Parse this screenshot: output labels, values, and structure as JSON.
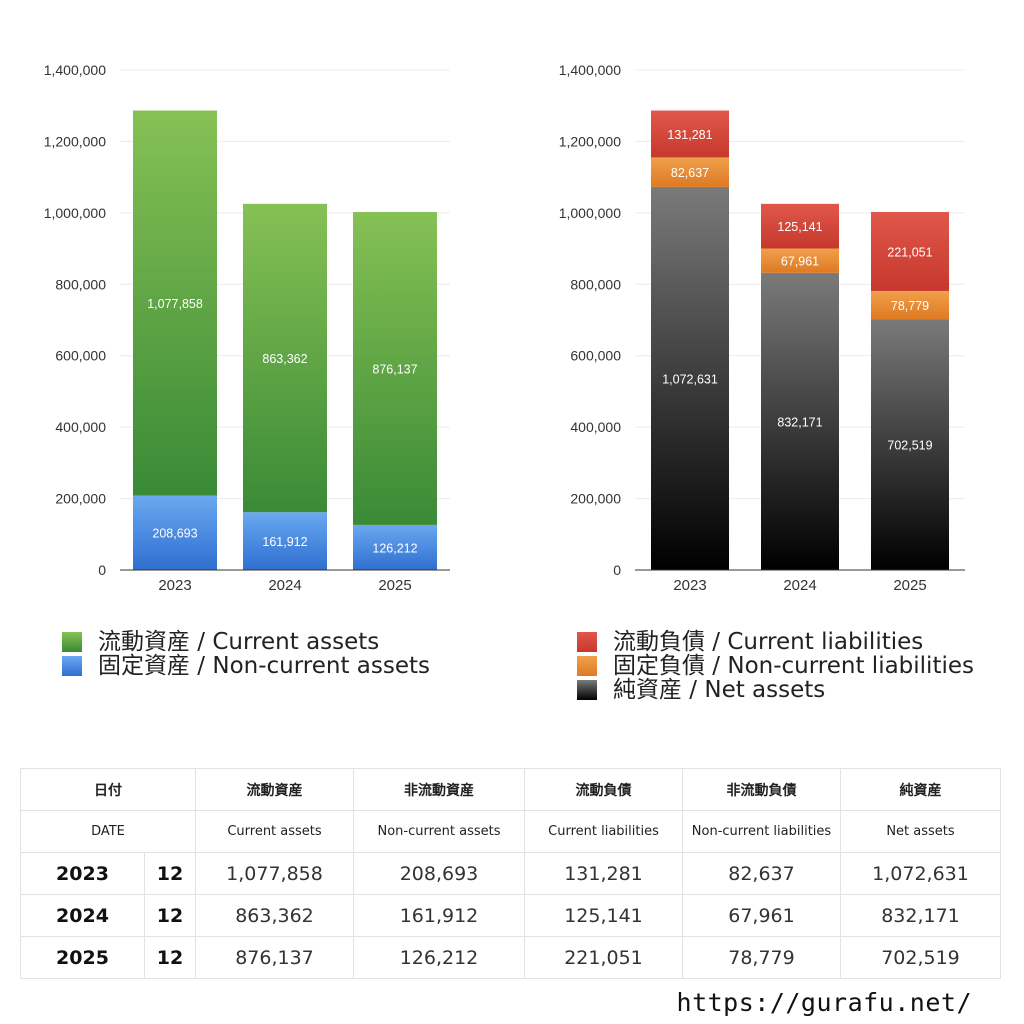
{
  "chart_data": [
    {
      "type": "bar",
      "stacked": true,
      "categories": [
        "2023",
        "2024",
        "2025"
      ],
      "ylim": [
        0,
        1400000
      ],
      "yticks": [
        "0",
        "200,000",
        "400,000",
        "600,000",
        "800,000",
        "1,000,000",
        "1,200,000",
        "1,400,000"
      ],
      "grid": true,
      "legend_position": "bottom",
      "series": [
        {
          "name": "固定資産 / Non-current assets",
          "values": [
            208693,
            161912,
            126212
          ],
          "labels": [
            "208,693",
            "161,912",
            "126,212"
          ],
          "color": "#4a86e0"
        },
        {
          "name": "流動資産 / Current assets",
          "values": [
            1077858,
            863362,
            876137
          ],
          "labels": [
            "1,077,858",
            "863,362",
            "876,137"
          ],
          "color": "#5ea544"
        }
      ]
    },
    {
      "type": "bar",
      "stacked": true,
      "categories": [
        "2023",
        "2024",
        "2025"
      ],
      "ylim": [
        0,
        1400000
      ],
      "yticks": [
        "0",
        "200,000",
        "400,000",
        "600,000",
        "800,000",
        "1,000,000",
        "1,200,000",
        "1,400,000"
      ],
      "grid": true,
      "legend_position": "bottom",
      "series": [
        {
          "name": "純資産 / Net assets",
          "values": [
            1072631,
            832171,
            702519
          ],
          "labels": [
            "1,072,631",
            "832,171",
            "702,519"
          ],
          "color": "#444444"
        },
        {
          "name": "固定負債 / Non-current liabilities",
          "values": [
            82637,
            67961,
            78779
          ],
          "labels": [
            "82,637",
            "67,961",
            "78,779"
          ],
          "color": "#e8892e"
        },
        {
          "name": "流動負債 / Current liabilities",
          "values": [
            131281,
            125141,
            221051
          ],
          "labels": [
            "131,281",
            "125,141",
            "221,051"
          ],
          "color": "#d4473a"
        }
      ]
    }
  ],
  "legend_left": [
    {
      "label": "流動資産 / Current assets",
      "color": "#5ea544"
    },
    {
      "label": "固定資産 / Non-current assets",
      "color": "#4a86e0"
    }
  ],
  "legend_right": [
    {
      "label": "流動負債 / Current liabilities",
      "color": "#d4473a"
    },
    {
      "label": "固定負債 / Non-current liabilities",
      "color": "#e8892e"
    },
    {
      "label": "純資産 / Net assets",
      "color": "#222222"
    }
  ],
  "table": {
    "header_jp": [
      "日付",
      "流動資産",
      "非流動資産",
      "流動負債",
      "非流動負債",
      "純資産"
    ],
    "header_en": [
      "DATE",
      "Current assets",
      "Non-current assets",
      "Current liabilities",
      "Non-current liabilities",
      "Net assets"
    ],
    "rows": [
      {
        "year": "2023",
        "month": "12",
        "values": [
          "1,077,858",
          "208,693",
          "131,281",
          "82,637",
          "1,072,631"
        ]
      },
      {
        "year": "2024",
        "month": "12",
        "values": [
          "863,362",
          "161,912",
          "125,141",
          "67,961",
          "832,171"
        ]
      },
      {
        "year": "2025",
        "month": "12",
        "values": [
          "876,137",
          "126,212",
          "221,051",
          "78,779",
          "702,519"
        ]
      }
    ]
  },
  "site_url": "https://gurafu.net/"
}
